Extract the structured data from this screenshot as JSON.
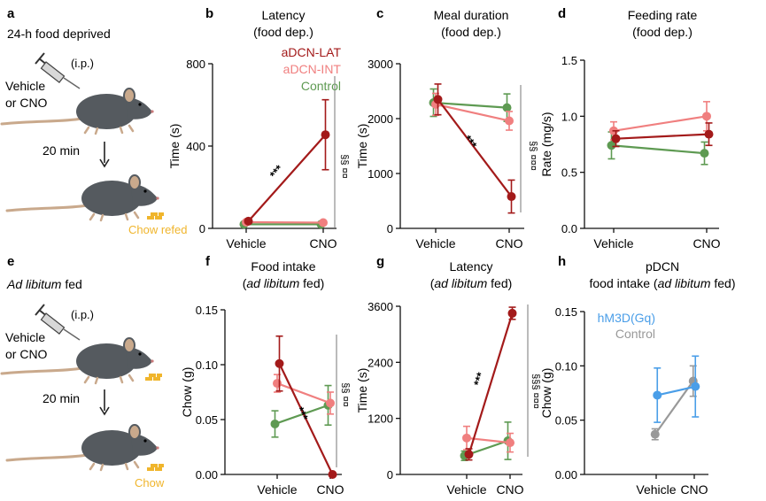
{
  "colors": {
    "lat": "#a31a1a",
    "int": "#f07f7f",
    "control": "#5e9a52",
    "hm3d": "#4a9ee8",
    "pdcn_control": "#999999",
    "chow": "#f0b52c",
    "mouse": "#555a5f",
    "text": "#111111"
  },
  "panels": {
    "a": {
      "letter": "a",
      "title": "24-h food deprived",
      "route": "(i.p.)",
      "drug_line1": "Vehicle",
      "drug_line2": "or CNO",
      "delay": "20 min",
      "outcome": "Chow refed"
    },
    "e": {
      "letter": "e",
      "title_italic": "Ad libitum",
      "title_rest": " fed",
      "route": "(i.p.)",
      "drug_line1": "Vehicle",
      "drug_line2": "or CNO",
      "delay": "20 min",
      "outcome": "Chow"
    },
    "b": {
      "letter": "b",
      "sig_vertical": "§§ ¤¤"
    },
    "c": {
      "letter": "c",
      "sig_vertical": "§§ ¤¤¤"
    },
    "d": {
      "letter": "d"
    },
    "f": {
      "letter": "f",
      "sig_vertical": "§§ ¤¤"
    },
    "g": {
      "letter": "g",
      "sig_vertical": "§§§ ¤¤¤"
    },
    "h": {
      "letter": "h"
    }
  },
  "chart_data": [
    {
      "id": "b",
      "type": "line",
      "title": "Latency",
      "subtitle": "(food dep.)",
      "ylabel": "Time (s)",
      "categories": [
        "Vehicle",
        "CNO"
      ],
      "ylim": [
        0,
        800
      ],
      "yticks": [
        0,
        400,
        800
      ],
      "series": [
        {
          "name": "Control",
          "color": "control",
          "values": [
            20,
            20
          ],
          "err": [
            4,
            5
          ]
        },
        {
          "name": "aDCN-INT",
          "color": "int",
          "values": [
            30,
            28
          ],
          "err": [
            5,
            6
          ]
        },
        {
          "name": "aDCN-LAT",
          "color": "lat",
          "values": [
            35,
            455
          ],
          "err": [
            6,
            170
          ]
        }
      ],
      "legend": [
        "aDCN-LAT",
        "aDCN-INT",
        "Control"
      ],
      "annotation": "***"
    },
    {
      "id": "c",
      "type": "line",
      "title": "Meal duration",
      "subtitle": "(food dep.)",
      "ylabel": "Time (s)",
      "categories": [
        "Vehicle",
        "CNO"
      ],
      "ylim": [
        0,
        3000
      ],
      "yticks": [
        0,
        1000,
        2000,
        3000
      ],
      "series": [
        {
          "name": "Control",
          "color": "control",
          "values": [
            2290,
            2200
          ],
          "err": [
            250,
            250
          ]
        },
        {
          "name": "aDCN-INT",
          "color": "int",
          "values": [
            2260,
            1960
          ],
          "err": [
            200,
            170
          ]
        },
        {
          "name": "aDCN-LAT",
          "color": "lat",
          "values": [
            2350,
            580
          ],
          "err": [
            280,
            300
          ]
        }
      ],
      "annotation": "***"
    },
    {
      "id": "d",
      "type": "line",
      "title": "Feeding rate",
      "subtitle": "(food dep.)",
      "ylabel": "Rate (mg/s)",
      "categories": [
        "Vehicle",
        "CNO"
      ],
      "ylim": [
        0,
        1.5
      ],
      "yticks": [
        "0.0",
        "0.5",
        "1.0",
        "1.5"
      ],
      "series": [
        {
          "name": "Control",
          "color": "control",
          "values": [
            0.74,
            0.67
          ],
          "err": [
            0.12,
            0.1
          ]
        },
        {
          "name": "aDCN-INT",
          "color": "int",
          "values": [
            0.87,
            1.0
          ],
          "err": [
            0.08,
            0.13
          ]
        },
        {
          "name": "aDCN-LAT",
          "color": "lat",
          "values": [
            0.8,
            0.84
          ],
          "err": [
            0.07,
            0.1
          ]
        }
      ]
    },
    {
      "id": "f",
      "type": "line",
      "title": "Food intake",
      "subtitle_prefix": "(",
      "subtitle_italic": "ad libitum",
      "subtitle_suffix": " fed)",
      "ylabel": "Chow (g)",
      "categories": [
        "Vehicle",
        "CNO"
      ],
      "ylim": [
        0,
        0.15
      ],
      "yticks": [
        "0.00",
        "0.05",
        "0.10",
        "0.15"
      ],
      "series": [
        {
          "name": "Control",
          "color": "control",
          "values": [
            0.046,
            0.063
          ],
          "err": [
            0.012,
            0.018
          ]
        },
        {
          "name": "aDCN-INT",
          "color": "int",
          "values": [
            0.083,
            0.065
          ],
          "err": [
            0.008,
            0.01
          ]
        },
        {
          "name": "aDCN-LAT",
          "color": "lat",
          "values": [
            0.101,
            0.0
          ],
          "err": [
            0.025,
            0.0
          ]
        }
      ],
      "annotation": "***"
    },
    {
      "id": "g",
      "type": "line",
      "title": "Latency",
      "subtitle_prefix": "(",
      "subtitle_italic": "ad libitum",
      "subtitle_suffix": " fed)",
      "ylabel": "Time (s)",
      "categories": [
        "Vehicle",
        "CNO"
      ],
      "ylim": [
        0,
        3600
      ],
      "yticks": [
        0,
        1200,
        2400,
        3600
      ],
      "series": [
        {
          "name": "Control",
          "color": "control",
          "values": [
            400,
            720
          ],
          "err": [
            100,
            400
          ]
        },
        {
          "name": "aDCN-INT",
          "color": "int",
          "values": [
            780,
            680
          ],
          "err": [
            250,
            200
          ]
        },
        {
          "name": "aDCN-LAT",
          "color": "lat",
          "values": [
            430,
            3450
          ],
          "err": [
            120,
            130
          ]
        }
      ],
      "annotation": "***"
    },
    {
      "id": "h",
      "type": "line",
      "title": "pDCN",
      "subtitle_prefix": "food intake (",
      "subtitle_italic": "ad libitum",
      "subtitle_suffix": " fed)",
      "ylabel": "Chow (g)",
      "categories": [
        "Vehicle",
        "CNO"
      ],
      "ylim": [
        0,
        0.15
      ],
      "yticks": [
        "0.00",
        "0.05",
        "0.10",
        "0.15"
      ],
      "series": [
        {
          "name": "Control",
          "color": "pdcn_control",
          "values": [
            0.037,
            0.086
          ],
          "err": [
            0.005,
            0.014
          ]
        },
        {
          "name": "hM3D(Gq)",
          "color": "hm3d",
          "values": [
            0.073,
            0.081
          ],
          "err": [
            0.025,
            0.028
          ]
        }
      ],
      "legend": [
        "hM3D(Gq)",
        "Control"
      ]
    }
  ]
}
